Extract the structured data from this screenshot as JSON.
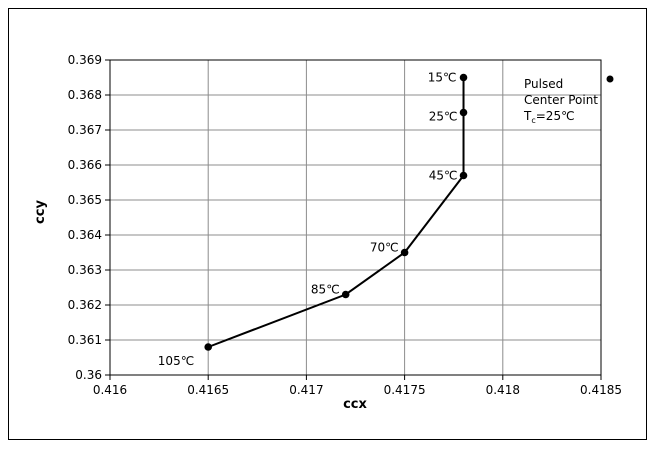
{
  "chart_data": {
    "type": "line",
    "title": "",
    "xlabel": "ccx",
    "ylabel": "ccy",
    "xlim": [
      0.416,
      0.4185
    ],
    "ylim": [
      0.36,
      0.369
    ],
    "x_ticks": [
      "0.416",
      "0.4165",
      "0.417",
      "0.4175",
      "0.418",
      "0.4185"
    ],
    "x_tick_values": [
      0.416,
      0.4165,
      0.417,
      0.4175,
      0.418,
      0.4185
    ],
    "y_ticks": [
      "0.36",
      "0.361",
      "0.362",
      "0.363",
      "0.364",
      "0.365",
      "0.366",
      "0.367",
      "0.368",
      "0.369"
    ],
    "y_tick_values": [
      0.36,
      0.361,
      0.362,
      0.363,
      0.364,
      0.365,
      0.366,
      0.367,
      0.368,
      0.369
    ],
    "grid": true,
    "series": [
      {
        "name": "Pulsed Center Point Tc=25°C",
        "color": "#000000",
        "points": [
          {
            "x": 0.4165,
            "y": 0.3608,
            "label": "105℃"
          },
          {
            "x": 0.4172,
            "y": 0.3623,
            "label": "85℃"
          },
          {
            "x": 0.4175,
            "y": 0.3635,
            "label": "70℃"
          },
          {
            "x": 0.4178,
            "y": 0.3657,
            "label": "45℃"
          },
          {
            "x": 0.4178,
            "y": 0.3675,
            "label": "25℃"
          },
          {
            "x": 0.4178,
            "y": 0.3685,
            "label": "15℃"
          }
        ]
      }
    ],
    "legend": {
      "position": "top-right",
      "line1": "Pulsed",
      "line2": "Center Point",
      "tc_main": "T",
      "tc_sub": "c",
      "tc_rest": "=25℃"
    }
  }
}
